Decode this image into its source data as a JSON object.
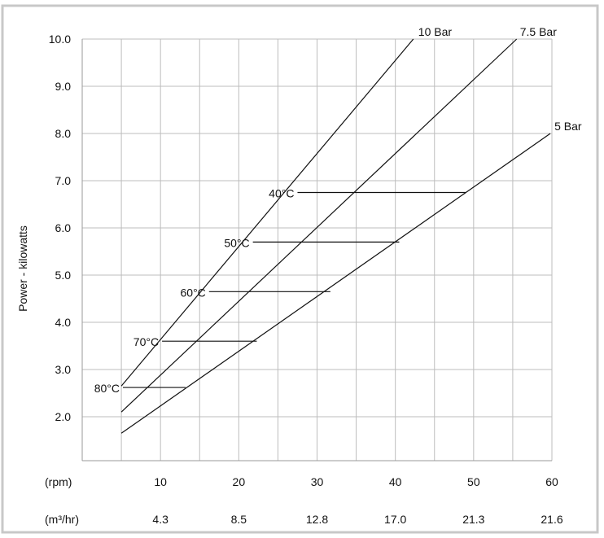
{
  "chart_data": {
    "type": "line",
    "title": "",
    "ylabel": "Power - kilowatts",
    "xlabel": "",
    "ylim": [
      1.4,
      10.0
    ],
    "xlim": [
      0,
      60
    ],
    "grid": true,
    "legend": "none",
    "y_ticks": [
      "10.0",
      "9.0",
      "8.0",
      "7.0",
      "6.0",
      "5.0",
      "4.0",
      "3.0",
      "2.0"
    ],
    "x_tick_rows": [
      {
        "label": "(rpm)",
        "ticks": [
          "10",
          "20",
          "30",
          "40",
          "50",
          "60"
        ]
      },
      {
        "label": "(m³/hr)",
        "ticks": [
          "4.3",
          "8.5",
          "12.8",
          "17.0",
          "21.3",
          "21.6"
        ]
      }
    ],
    "series": [
      {
        "name": "10 Bar",
        "x": [
          5,
          42.3
        ],
        "y": [
          2.65,
          10.0
        ]
      },
      {
        "name": "7.5 Bar",
        "x": [
          5,
          55.5
        ],
        "y": [
          2.1,
          10.0
        ]
      },
      {
        "name": "5 Bar",
        "x": [
          5,
          59.8
        ],
        "y": [
          1.65,
          8.0
        ]
      }
    ],
    "temperature_lines": [
      {
        "label": "40°C",
        "power": 6.75,
        "x_start": 27.5,
        "x_end": 49.0
      },
      {
        "label": "50°C",
        "power": 5.7,
        "x_start": 21.8,
        "x_end": 40.5
      },
      {
        "label": "60°C",
        "power": 4.65,
        "x_start": 16.2,
        "x_end": 31.7
      },
      {
        "label": "70°C",
        "power": 3.6,
        "x_start": 10.2,
        "x_end": 22.3
      },
      {
        "label": "80°C",
        "power": 2.62,
        "x_start": 5.2,
        "x_end": 13.2
      }
    ]
  }
}
